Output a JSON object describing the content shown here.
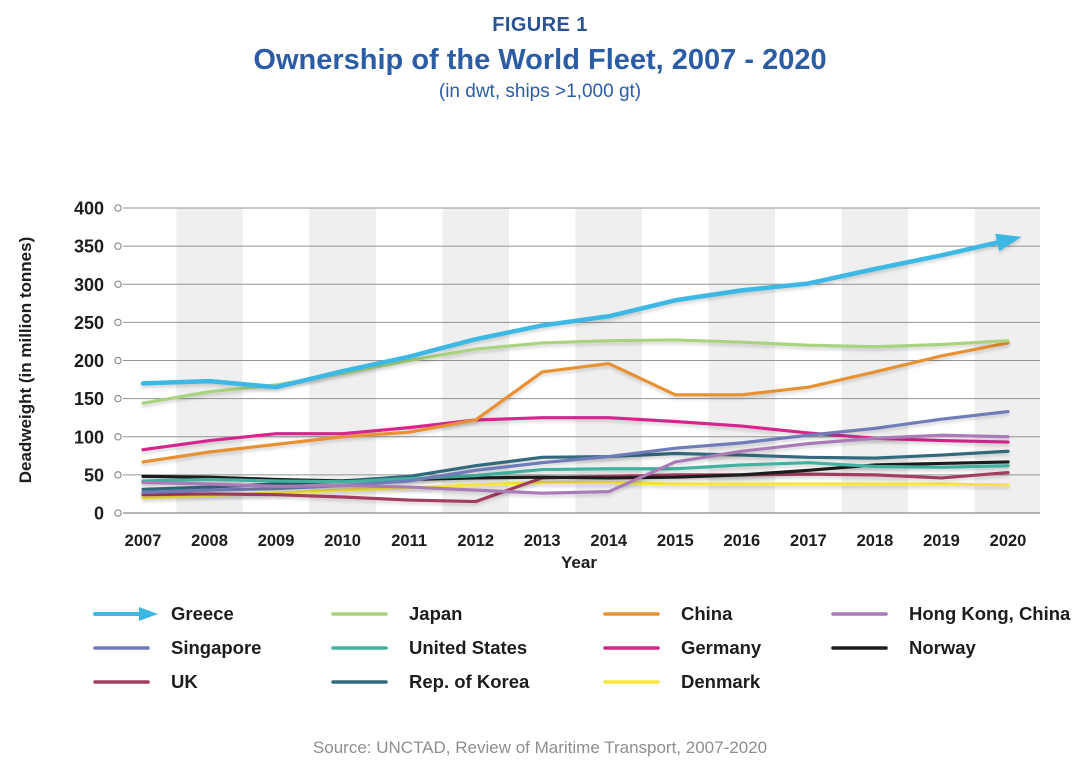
{
  "header": {
    "figure_label": "FIGURE 1",
    "title": "Ownership of the World Fleet, 2007 - 2020",
    "subtitle": "(in dwt, ships >1,000 gt)"
  },
  "footer": {
    "source": "Source: UNCTAD, Review of Maritime Transport, 2007-2020"
  },
  "colors": {
    "title_blue": "#2d5ca6",
    "band": "#efefef",
    "grid": "#949494",
    "axis_zero": "#6e6e6e",
    "tick_text": "#1d1d1b",
    "source_gray": "#8e8e8e"
  },
  "chart_data": {
    "type": "line",
    "x": [
      2007,
      2008,
      2009,
      2010,
      2011,
      2012,
      2013,
      2014,
      2015,
      2016,
      2017,
      2018,
      2019,
      2020
    ],
    "xlabel": "Year",
    "ylabel": "Deadweight (in million tonnes)",
    "ylim": [
      0,
      400
    ],
    "yticks": [
      0,
      50,
      100,
      150,
      200,
      250,
      300,
      350,
      400
    ],
    "grid": "horizontal-with-left-circle-markers",
    "band_years": [
      2008,
      2010,
      2012,
      2014,
      2016,
      2018,
      2020
    ],
    "legend_position": "bottom",
    "series": [
      {
        "name": "Greece",
        "color": "#3db7e4",
        "arrow": true,
        "values": [
          170,
          173,
          165,
          186,
          205,
          228,
          246,
          258,
          279,
          292,
          301,
          320,
          338,
          358
        ]
      },
      {
        "name": "Japan",
        "color": "#a9d37f",
        "arrow": false,
        "values": [
          144,
          159,
          168,
          183,
          200,
          215,
          223,
          226,
          227,
          224,
          220,
          218,
          221,
          226
        ]
      },
      {
        "name": "China",
        "color": "#e79133",
        "arrow": false,
        "values": [
          67,
          80,
          90,
          100,
          106,
          122,
          185,
          196,
          155,
          155,
          165,
          185,
          206,
          223
        ]
      },
      {
        "name": "Hong Kong, China",
        "color": "#a97bb7",
        "arrow": false,
        "values": [
          40,
          38,
          35,
          36,
          34,
          30,
          26,
          28,
          67,
          81,
          91,
          98,
          102,
          100
        ]
      },
      {
        "name": "Singapore",
        "color": "#6f7cb8",
        "arrow": false,
        "values": [
          27,
          30,
          32,
          36,
          42,
          56,
          66,
          74,
          85,
          92,
          102,
          111,
          123,
          133
        ]
      },
      {
        "name": "United States",
        "color": "#43b1a0",
        "arrow": false,
        "values": [
          42,
          44,
          42,
          41,
          45,
          49,
          57,
          58,
          58,
          63,
          66,
          61,
          60,
          62
        ]
      },
      {
        "name": "Germany",
        "color": "#d4268c",
        "arrow": false,
        "values": [
          83,
          95,
          104,
          104,
          112,
          122,
          125,
          125,
          120,
          114,
          105,
          98,
          95,
          93
        ]
      },
      {
        "name": "Norway",
        "color": "#1d1d1b",
        "arrow": false,
        "values": [
          48,
          47,
          44,
          42,
          44,
          46,
          47,
          46,
          47,
          50,
          56,
          63,
          65,
          67
        ]
      },
      {
        "name": "UK",
        "color": "#a33e62",
        "arrow": false,
        "values": [
          24,
          25,
          24,
          21,
          17,
          15,
          46,
          48,
          50,
          50,
          51,
          50,
          46,
          53
        ]
      },
      {
        "name": "Rep. of Korea",
        "color": "#33697c",
        "arrow": false,
        "values": [
          31,
          34,
          38,
          42,
          48,
          62,
          73,
          74,
          78,
          76,
          73,
          72,
          76,
          81
        ]
      },
      {
        "name": "Denmark",
        "color": "#f7e63f",
        "arrow": false,
        "values": [
          20,
          23,
          26,
          30,
          33,
          37,
          40,
          40,
          38,
          38,
          38,
          38,
          38,
          37
        ]
      }
    ]
  },
  "legend": {
    "items": [
      {
        "label": "Greece",
        "color": "#3db7e4",
        "arrow": true
      },
      {
        "label": "Japan",
        "color": "#a9d37f",
        "arrow": false
      },
      {
        "label": "China",
        "color": "#e79133",
        "arrow": false
      },
      {
        "label": "Hong Kong, China",
        "color": "#a97bb7",
        "arrow": false
      },
      {
        "label": "Singapore",
        "color": "#6f7cb8",
        "arrow": false
      },
      {
        "label": "United States",
        "color": "#43b1a0",
        "arrow": false
      },
      {
        "label": "Germany",
        "color": "#d4268c",
        "arrow": false
      },
      {
        "label": "Norway",
        "color": "#1d1d1b",
        "arrow": false
      },
      {
        "label": "UK",
        "color": "#a33e62",
        "arrow": false
      },
      {
        "label": "Rep. of Korea",
        "color": "#33697c",
        "arrow": false
      },
      {
        "label": "Denmark",
        "color": "#f7e63f",
        "arrow": false
      }
    ]
  }
}
